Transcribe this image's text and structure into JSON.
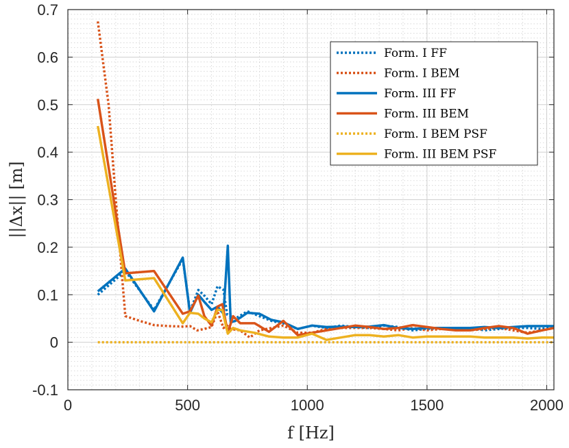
{
  "chart_data": {
    "type": "line",
    "xlabel": "f [Hz]",
    "ylabel": "||Δx|| [m]",
    "xlim": [
      0,
      2030
    ],
    "ylim": [
      -0.1,
      0.7
    ],
    "xticks": [
      0,
      500,
      1000,
      1500,
      2000
    ],
    "yticks": [
      -0.1,
      0,
      0.1,
      0.2,
      0.3,
      0.4,
      0.5,
      0.6,
      0.7
    ],
    "xtick_labels": [
      "0",
      "500",
      "1000",
      "1500",
      "2000"
    ],
    "ytick_labels": [
      "-0.1",
      "0",
      "0.1",
      "0.2",
      "0.3",
      "0.4",
      "0.5",
      "0.6",
      "0.7"
    ],
    "grid": true,
    "minor_grid": true,
    "legend_position": "top-right",
    "series": [
      {
        "name": "Form. I FF",
        "color": "#0072BD",
        "style": "dotted",
        "x": [
          125,
          240,
          360,
          480,
          510,
          545,
          570,
          600,
          625,
          650,
          665,
          680,
          700,
          750,
          800,
          850,
          900,
          960,
          1020,
          1080,
          1140,
          1200,
          1260,
          1320,
          1380,
          1440,
          1500,
          1560,
          1620,
          1680,
          1740,
          1800,
          1860,
          1920,
          1980,
          2030
        ],
        "y": [
          0.1,
          0.15,
          0.068,
          0.175,
          0.065,
          0.11,
          0.098,
          0.08,
          0.118,
          0.11,
          0.058,
          0.055,
          0.05,
          0.065,
          0.055,
          0.045,
          0.04,
          0.028,
          0.035,
          0.03,
          0.035,
          0.032,
          0.03,
          0.035,
          0.032,
          0.025,
          0.028,
          0.03,
          0.028,
          0.03,
          0.025,
          0.028,
          0.03,
          0.03,
          0.028,
          0.033
        ]
      },
      {
        "name": "Form. I BEM",
        "color": "#D95319",
        "style": "dotted",
        "x": [
          125,
          170,
          200,
          240,
          300,
          360,
          420,
          480,
          510,
          540,
          570,
          600,
          625,
          650,
          665,
          680,
          720,
          760,
          800,
          850,
          900,
          960,
          1020,
          1080,
          1140,
          1200,
          1260,
          1320,
          1380,
          1440,
          1500,
          1560,
          1620,
          1680,
          1740,
          1800,
          1860,
          1920,
          1980,
          2030
        ],
        "y": [
          0.675,
          0.5,
          0.3,
          0.055,
          0.045,
          0.036,
          0.034,
          0.033,
          0.034,
          0.025,
          0.028,
          0.032,
          0.065,
          0.03,
          0.035,
          0.028,
          0.025,
          0.01,
          0.025,
          0.03,
          0.035,
          0.02,
          0.02,
          0.028,
          0.03,
          0.03,
          0.03,
          0.028,
          0.025,
          0.03,
          0.025,
          0.028,
          0.03,
          0.025,
          0.028,
          0.03,
          0.025,
          0.02,
          0.025,
          0.03
        ]
      },
      {
        "name": "Form. III FF",
        "color": "#0072BD",
        "style": "solid",
        "x": [
          125,
          240,
          360,
          480,
          510,
          545,
          570,
          600,
          625,
          650,
          668,
          680,
          700,
          750,
          800,
          850,
          900,
          960,
          1020,
          1080,
          1140,
          1200,
          1260,
          1320,
          1380,
          1440,
          1500,
          1560,
          1620,
          1680,
          1740,
          1800,
          1860,
          1920,
          1980,
          2030
        ],
        "y": [
          0.107,
          0.155,
          0.065,
          0.178,
          0.062,
          0.1,
          0.085,
          0.068,
          0.075,
          0.06,
          0.203,
          0.042,
          0.045,
          0.062,
          0.06,
          0.047,
          0.042,
          0.028,
          0.035,
          0.032,
          0.033,
          0.032,
          0.033,
          0.036,
          0.03,
          0.028,
          0.03,
          0.03,
          0.03,
          0.03,
          0.032,
          0.03,
          0.032,
          0.034,
          0.034,
          0.034
        ]
      },
      {
        "name": "Form. III BEM",
        "color": "#D95319",
        "style": "solid",
        "x": [
          125,
          240,
          360,
          480,
          510,
          545,
          570,
          600,
          625,
          645,
          668,
          690,
          720,
          780,
          840,
          900,
          960,
          1020,
          1080,
          1140,
          1200,
          1260,
          1320,
          1380,
          1440,
          1500,
          1560,
          1620,
          1680,
          1740,
          1800,
          1860,
          1920,
          1980,
          2030
        ],
        "y": [
          0.512,
          0.145,
          0.15,
          0.06,
          0.065,
          0.098,
          0.055,
          0.035,
          0.075,
          0.08,
          0.02,
          0.055,
          0.04,
          0.04,
          0.022,
          0.045,
          0.015,
          0.02,
          0.025,
          0.03,
          0.035,
          0.032,
          0.028,
          0.03,
          0.036,
          0.032,
          0.028,
          0.025,
          0.025,
          0.03,
          0.034,
          0.03,
          0.018,
          0.025,
          0.03
        ]
      },
      {
        "name": "Form. I BEM PSF",
        "color": "#EDB120",
        "style": "dotted",
        "x": [
          125,
          300,
          500,
          700,
          900,
          1100,
          1300,
          1500,
          1700,
          1900,
          2030
        ],
        "y": [
          0,
          0,
          0,
          0,
          0,
          0,
          0,
          0,
          0,
          0,
          0
        ]
      },
      {
        "name": "Form. III BEM PSF",
        "color": "#EDB120",
        "style": "solid",
        "x": [
          125,
          240,
          360,
          480,
          510,
          545,
          570,
          600,
          625,
          645,
          668,
          690,
          720,
          780,
          840,
          900,
          960,
          1020,
          1080,
          1140,
          1200,
          1260,
          1320,
          1380,
          1440,
          1500,
          1560,
          1620,
          1680,
          1740,
          1800,
          1860,
          1920,
          1980,
          2030
        ],
        "y": [
          0.455,
          0.13,
          0.135,
          0.04,
          0.062,
          0.06,
          0.05,
          0.042,
          0.068,
          0.068,
          0.018,
          0.03,
          0.025,
          0.02,
          0.012,
          0.01,
          0.01,
          0.018,
          0.005,
          0.01,
          0.015,
          0.015,
          0.012,
          0.015,
          0.01,
          0.012,
          0.012,
          0.012,
          0.012,
          0.01,
          0.01,
          0.01,
          0.008,
          0.01,
          0.01
        ]
      }
    ]
  }
}
